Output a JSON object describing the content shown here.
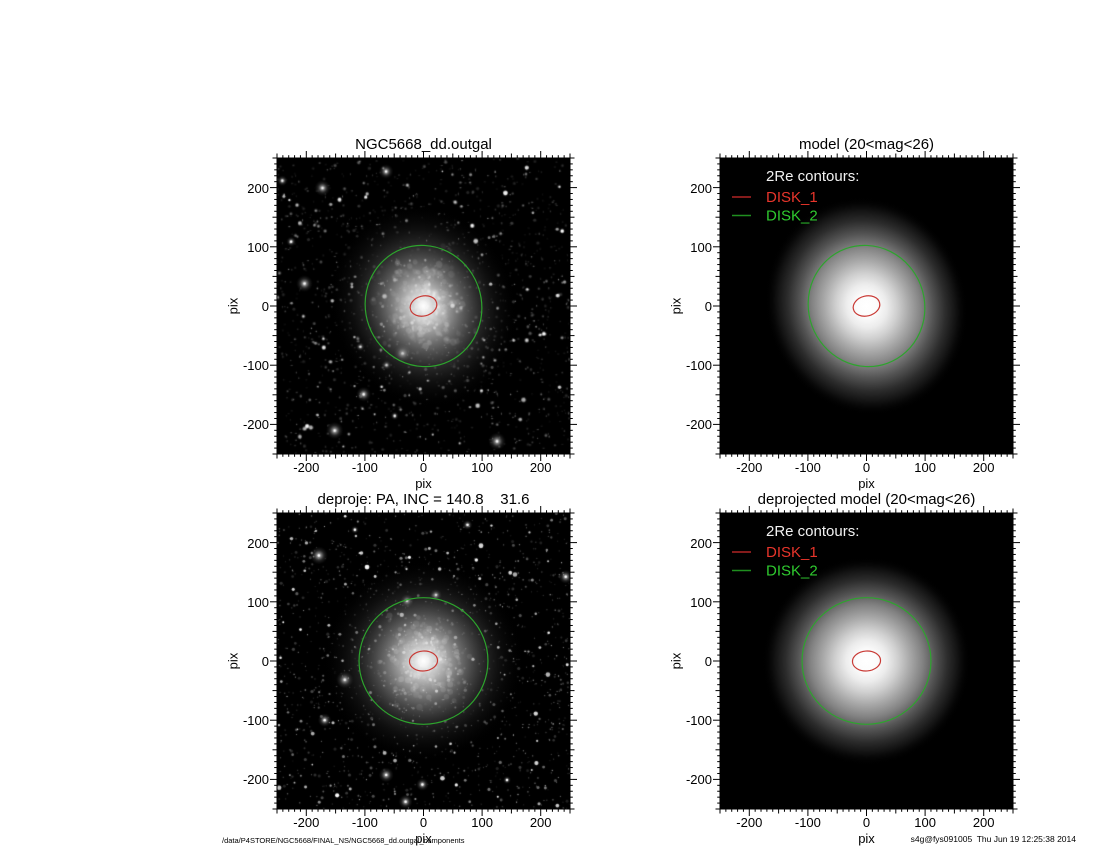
{
  "chart_data": {
    "type": "heatmap",
    "description": "2x2 grid of astronomical grayscale image panels: observed galaxy image, 2D disk model, deprojected galaxy image, deprojected model; each panel has 2Re contour ellipses for two disk components overlaid",
    "xlabel": "pix",
    "ylabel": "pix",
    "xlim": [
      -250,
      250
    ],
    "ylim": [
      -250,
      250
    ],
    "xticks": [
      -200,
      -100,
      0,
      100,
      200
    ],
    "yticks": [
      -200,
      -100,
      0,
      100,
      200
    ],
    "minor_tick_step_pix": 10,
    "grid": false,
    "panel_bg": "#000000",
    "legend": {
      "title": "2Re contours:",
      "position": "top-left",
      "title_color": "#f2f2f2",
      "items": [
        {
          "label": "DISK_1",
          "label_color": "#e8352b",
          "swatch_color": "#b02424"
        },
        {
          "label": "DISK_2",
          "label_color": "#2fca2f",
          "swatch_color": "#1f8f1f"
        }
      ]
    },
    "panels": [
      {
        "title": "NGC5668_dd.outgal",
        "kind": "observed-image",
        "has_legend": false,
        "contours": [
          {
            "name": "DISK_1",
            "color": "#c93a35",
            "cx_pix": 0,
            "cy_pix": 0,
            "rx_pix": 23,
            "ry_pix": 17,
            "pa_deg": -14
          },
          {
            "name": "DISK_2",
            "color": "#2da42d",
            "cx_pix": 0,
            "cy_pix": 0,
            "rx_pix": 99,
            "ry_pix": 104,
            "pa_deg": -20
          }
        ]
      },
      {
        "title": "model (20<mag<26)",
        "kind": "model-image",
        "has_legend": true,
        "contours": [
          {
            "name": "DISK_1",
            "color": "#c93a35",
            "cx_pix": 0,
            "cy_pix": 0,
            "rx_pix": 23,
            "ry_pix": 17,
            "pa_deg": -14
          },
          {
            "name": "DISK_2",
            "color": "#2da42d",
            "cx_pix": 0,
            "cy_pix": 0,
            "rx_pix": 99,
            "ry_pix": 104,
            "pa_deg": -20
          }
        ]
      },
      {
        "title": "deproje: PA, INC = 140.8    31.6",
        "kind": "observed-image-deprojected",
        "has_legend": false,
        "contours": [
          {
            "name": "DISK_1",
            "color": "#c93a35",
            "cx_pix": 0,
            "cy_pix": 0,
            "rx_pix": 24,
            "ry_pix": 17,
            "pa_deg": -4
          },
          {
            "name": "DISK_2",
            "color": "#2da42d",
            "cx_pix": 0,
            "cy_pix": 0,
            "rx_pix": 110,
            "ry_pix": 108,
            "pa_deg": 0
          }
        ]
      },
      {
        "title": "deprojected model (20<mag<26)",
        "kind": "model-image-deprojected",
        "has_legend": true,
        "contours": [
          {
            "name": "DISK_1",
            "color": "#c93a35",
            "cx_pix": 0,
            "cy_pix": 0,
            "rx_pix": 24,
            "ry_pix": 17,
            "pa_deg": -4
          },
          {
            "name": "DISK_2",
            "color": "#2da42d",
            "cx_pix": 0,
            "cy_pix": 0,
            "rx_pix": 110,
            "ry_pix": 108,
            "pa_deg": 0
          }
        ]
      }
    ]
  },
  "footer": {
    "left": "/data/P4STORE/NGC5668/FINAL_NS/NGC5668_dd.outgal_components",
    "right": "s4g@fys091005  Thu Jun 19 12:25:38 2014"
  }
}
